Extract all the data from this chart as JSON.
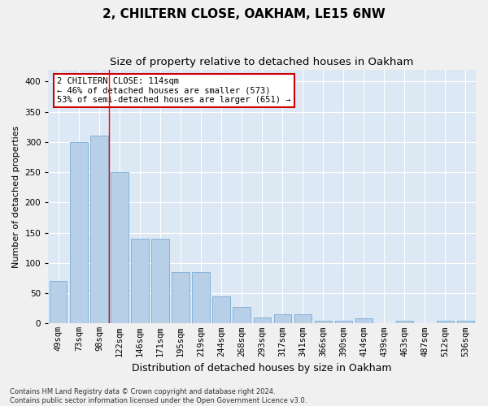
{
  "title": "2, CHILTERN CLOSE, OAKHAM, LE15 6NW",
  "subtitle": "Size of property relative to detached houses in Oakham",
  "xlabel": "Distribution of detached houses by size in Oakham",
  "ylabel": "Number of detached properties",
  "categories": [
    "49sqm",
    "73sqm",
    "98sqm",
    "122sqm",
    "146sqm",
    "171sqm",
    "195sqm",
    "219sqm",
    "244sqm",
    "268sqm",
    "293sqm",
    "317sqm",
    "341sqm",
    "366sqm",
    "390sqm",
    "414sqm",
    "439sqm",
    "463sqm",
    "487sqm",
    "512sqm",
    "536sqm"
  ],
  "values": [
    70,
    300,
    310,
    250,
    140,
    140,
    85,
    85,
    45,
    28,
    10,
    15,
    15,
    5,
    5,
    8,
    0,
    5,
    0,
    5,
    5
  ],
  "bar_color": "#b8cfe8",
  "bar_edge_color": "#7aadd4",
  "bg_color": "#dde8f5",
  "grid_color": "#ffffff",
  "fig_bg_color": "#f0f0f0",
  "red_line_x": 2.5,
  "annotation_text": "2 CHILTERN CLOSE: 114sqm\n← 46% of detached houses are smaller (573)\n53% of semi-detached houses are larger (651) →",
  "annotation_box_color": "#ffffff",
  "annotation_box_edge": "#cc0000",
  "footer": "Contains HM Land Registry data © Crown copyright and database right 2024.\nContains public sector information licensed under the Open Government Licence v3.0.",
  "ylim": [
    0,
    420
  ],
  "yticks": [
    0,
    50,
    100,
    150,
    200,
    250,
    300,
    350,
    400
  ],
  "title_fontsize": 11,
  "subtitle_fontsize": 9.5,
  "tick_fontsize": 7.5,
  "ylabel_fontsize": 8,
  "xlabel_fontsize": 9
}
